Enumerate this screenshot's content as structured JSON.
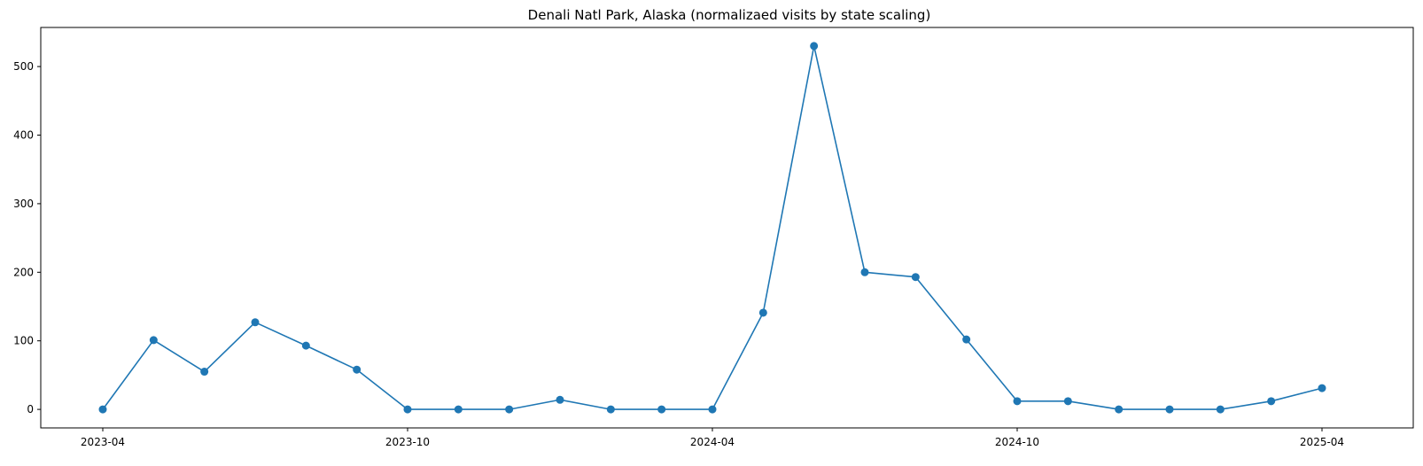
{
  "chart_data": {
    "type": "line",
    "title": "Denali Natl Park, Alaska (normalizaed visits by state scaling)",
    "xlabel": "",
    "ylabel": "",
    "x": [
      "2023-04",
      "2023-05",
      "2023-06",
      "2023-07",
      "2023-08",
      "2023-09",
      "2023-10",
      "2023-11",
      "2023-12",
      "2024-01",
      "2024-02",
      "2024-03",
      "2024-04",
      "2024-05",
      "2024-06",
      "2024-07",
      "2024-08",
      "2024-09",
      "2024-10",
      "2024-11",
      "2024-12",
      "2025-01",
      "2025-02",
      "2025-03",
      "2025-04"
    ],
    "series": [
      {
        "values": [
          0,
          101,
          55,
          127,
          93,
          58,
          0,
          0,
          0,
          14,
          0,
          0,
          0,
          141,
          530,
          200,
          193,
          102,
          12,
          12,
          0,
          0,
          0,
          12,
          31
        ]
      }
    ],
    "xticks": [
      "2023-04",
      "2023-10",
      "2024-04",
      "2024-10",
      "2025-04"
    ],
    "yticks": [
      0,
      100,
      200,
      300,
      400,
      500
    ],
    "ylim": [
      -27,
      557
    ],
    "grid": false,
    "legend": "none",
    "colors": {
      "line": "#1f77b4",
      "axes": "#000000",
      "background": "#ffffff"
    }
  }
}
